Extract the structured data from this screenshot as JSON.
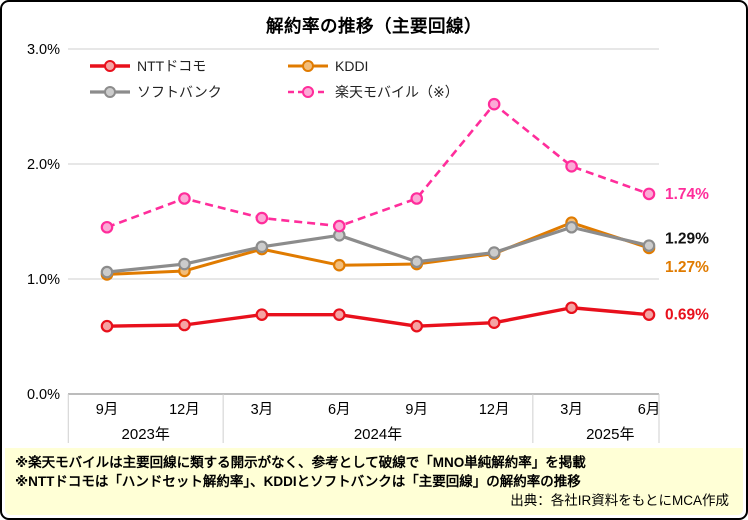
{
  "chart_data": {
    "type": "line",
    "title": "解約率の推移（主要回線）",
    "categories": [
      "9月",
      "12月",
      "3月",
      "6月",
      "9月",
      "12月",
      "3月",
      "6月"
    ],
    "year_groups": [
      {
        "label": "2023年",
        "span": 2
      },
      {
        "label": "2024年",
        "span": 4
      },
      {
        "label": "2025年",
        "span": 2
      }
    ],
    "yticks": [
      "0.0%",
      "1.0%",
      "2.0%",
      "3.0%"
    ],
    "ytick_values": [
      0,
      1,
      2,
      3
    ],
    "ylim": [
      0,
      3
    ],
    "grid": true,
    "legend_position": "top-left-inside",
    "series": [
      {
        "key": "docomo",
        "name": "NTTドコモ",
        "color": "#e8101c",
        "marker_fill": "#f5a3a3",
        "width": 3.4,
        "dashed": false,
        "values": [
          0.59,
          0.6,
          0.69,
          0.69,
          0.59,
          0.62,
          0.75,
          0.69
        ],
        "end_label": "0.69%",
        "end_label_color": "#e8101c",
        "end_label_dy": 0
      },
      {
        "key": "kddi",
        "name": "KDDI",
        "color": "#e07b00",
        "marker_fill": "#f2bd7a",
        "width": 3,
        "dashed": false,
        "values": [
          1.04,
          1.07,
          1.26,
          1.12,
          1.13,
          1.22,
          1.49,
          1.27
        ],
        "end_label": "1.27%",
        "end_label_color": "#e07b00",
        "end_label_dy": 19
      },
      {
        "key": "softbank",
        "name": "ソフトバンク",
        "color": "#8c8c8c",
        "marker_fill": "#cccccc",
        "width": 3.2,
        "dashed": false,
        "values": [
          1.06,
          1.13,
          1.28,
          1.38,
          1.15,
          1.23,
          1.45,
          1.29
        ],
        "end_label": "1.29%",
        "end_label_color": "#111111",
        "end_label_dy": -7
      },
      {
        "key": "rakuten",
        "name": "楽天モバイル（※）",
        "color": "#ff2d9b",
        "marker_fill": "#fbaad6",
        "width": 2.6,
        "dashed": true,
        "values": [
          1.45,
          1.7,
          1.53,
          1.46,
          1.7,
          2.52,
          1.98,
          1.74
        ],
        "end_label": "1.74%",
        "end_label_color": "#ff2d9b",
        "end_label_dy": 0
      }
    ]
  },
  "notes": {
    "line1": "※楽天モバイルは主要回線に類する開示がなく、参考として破線で「MNO単純解約率」を掲載",
    "line2": "※NTTドコモは「ハンドセット解約率」、KDDIとソフトバンクは「主要回線」の解約率の推移",
    "source": "出典：各社IR資料をもとにMCA作成"
  },
  "colors": {
    "grid": "#cfcfcf",
    "axis": "#a6a6a6",
    "notes_background": "#ffffd6",
    "frame_border": "#000000"
  }
}
